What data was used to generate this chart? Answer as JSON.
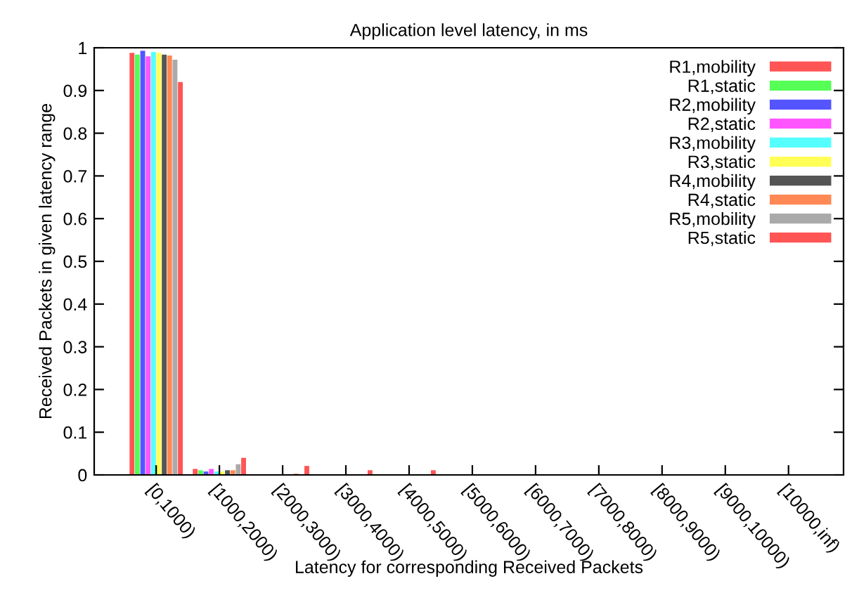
{
  "chart_data": {
    "type": "bar",
    "title": "Application level latency, in ms",
    "xlabel": "Latency for corresponding Received Packets",
    "ylabel": "Received Packets in given latency range",
    "categories": [
      "[0,1000)",
      "[1000,2000)",
      "[2000,3000)",
      "[3000,4000)",
      "[4000,5000)",
      "[5000,6000)",
      "[6000,7000)",
      "[7000,8000)",
      "[8000,9000)",
      "[9000,10000)",
      "[10000,inf)"
    ],
    "ylim": [
      0,
      1
    ],
    "yticks": [
      {
        "value": 0,
        "label": "0"
      },
      {
        "value": 0.1,
        "label": "0.1"
      },
      {
        "value": 0.2,
        "label": "0.2"
      },
      {
        "value": 0.3,
        "label": "0.3"
      },
      {
        "value": 0.4,
        "label": "0.4"
      },
      {
        "value": 0.5,
        "label": "0.5"
      },
      {
        "value": 0.6,
        "label": "0.6"
      },
      {
        "value": 0.7,
        "label": "0.7"
      },
      {
        "value": 0.8,
        "label": "0.8"
      },
      {
        "value": 0.9,
        "label": "0.9"
      },
      {
        "value": 1,
        "label": "1"
      }
    ],
    "grid": false,
    "legend": "top right",
    "series": [
      {
        "name": "R1,mobility",
        "color": "#ff5555",
        "values": [
          0.988,
          0.014,
          0,
          0,
          0,
          0,
          0,
          0,
          0,
          0,
          0
        ]
      },
      {
        "name": "R1,static",
        "color": "#55ff55",
        "values": [
          0.984,
          0.011,
          null,
          0,
          0,
          0,
          0,
          0,
          0,
          0,
          0
        ]
      },
      {
        "name": "R2,mobility",
        "color": "#5555ff",
        "values": [
          0.993,
          0.008,
          0,
          0,
          0,
          0,
          0,
          0,
          0,
          0,
          0
        ]
      },
      {
        "name": "R2,static",
        "color": "#ff55ff",
        "values": [
          0.98,
          0.014,
          null,
          0,
          0,
          0,
          0,
          0,
          0,
          0,
          0
        ]
      },
      {
        "name": "R3,mobility",
        "color": "#55ffff",
        "values": [
          0.99,
          0.008,
          0,
          0,
          0,
          0,
          0,
          0,
          0,
          0,
          0
        ]
      },
      {
        "name": "R3,static",
        "color": "#ffff55",
        "values": [
          0.988,
          0.008,
          0,
          0,
          0,
          0,
          0,
          0,
          0,
          0,
          0
        ]
      },
      {
        "name": "R4,mobility",
        "color": "#555555",
        "values": [
          0.984,
          0.011,
          0,
          null,
          0,
          0,
          0,
          0,
          0,
          0,
          0
        ]
      },
      {
        "name": "R4,static",
        "color": "#ff8855",
        "values": [
          0.982,
          0.011,
          0.003,
          0,
          0,
          0,
          0,
          0,
          0,
          0,
          0
        ]
      },
      {
        "name": "R5,mobility",
        "color": "#aaaaaa",
        "values": [
          0.972,
          0.025,
          0,
          0,
          0,
          0,
          0,
          0,
          0,
          0,
          0
        ]
      },
      {
        "name": "R5,static",
        "color": "#ff5555",
        "values": [
          0.92,
          0.04,
          0.021,
          0.011,
          0.011,
          0,
          0,
          0,
          0,
          0,
          0
        ]
      }
    ]
  }
}
